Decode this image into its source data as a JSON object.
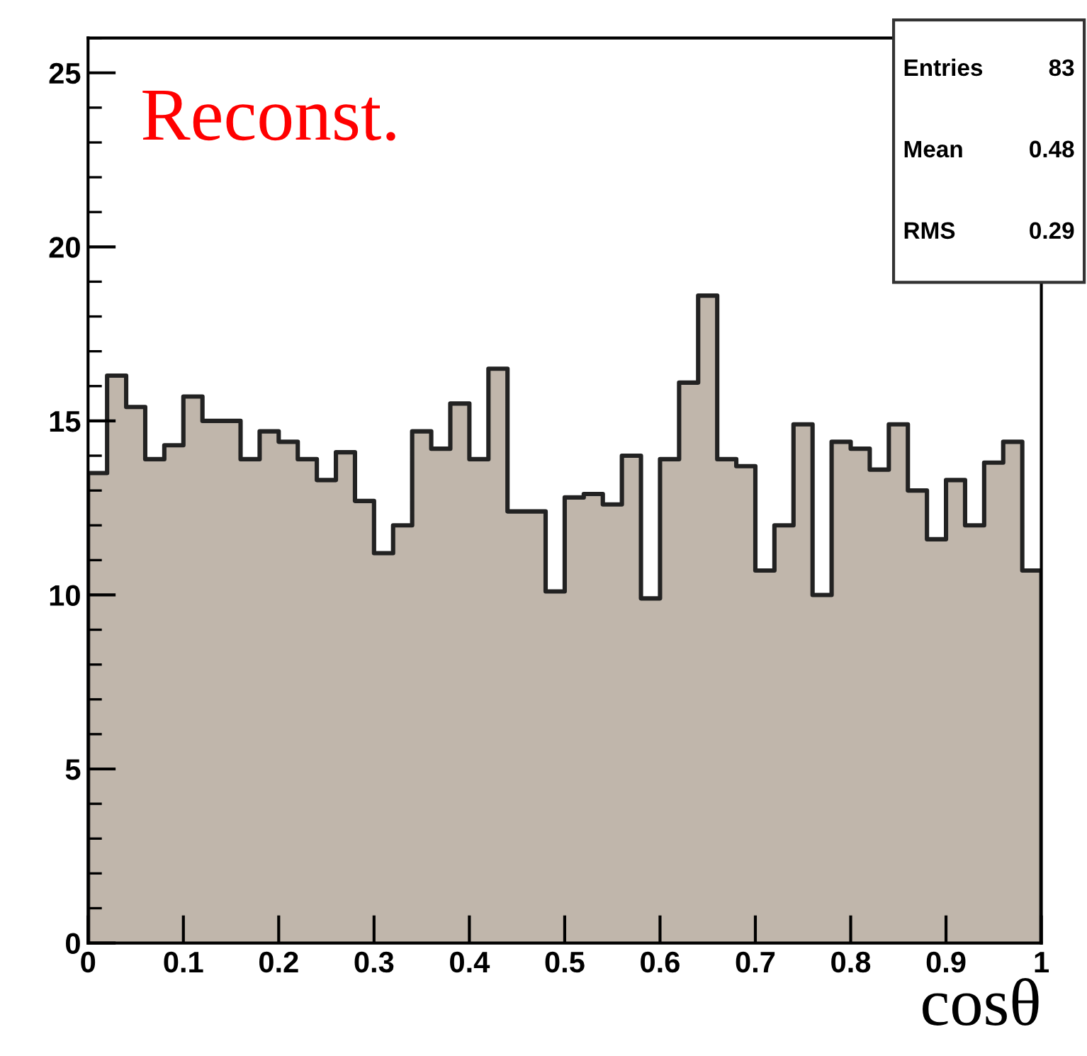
{
  "chart_data": {
    "type": "histogram",
    "xlabel": "cosθ",
    "annotations": [
      "Reconst.",
      "Entries",
      "83",
      "Mean",
      "0.48",
      "RMS",
      "0.29"
    ],
    "bins": [
      0,
      0.02,
      0.04,
      0.06,
      0.08,
      0.1,
      0.12,
      0.14,
      0.16,
      0.18,
      0.2,
      0.22,
      0.24,
      0.26,
      0.28,
      0.3,
      0.32,
      0.34,
      0.36,
      0.38,
      0.4,
      0.42,
      0.44,
      0.46,
      0.48,
      0.5,
      0.52,
      0.54,
      0.56,
      0.58,
      0.6,
      0.62,
      0.64,
      0.66,
      0.68,
      0.7,
      0.72,
      0.74,
      0.76,
      0.78,
      0.8,
      0.82,
      0.84,
      0.86,
      0.88,
      0.9,
      0.92,
      0.94,
      0.96,
      0.98,
      1
    ],
    "values": [
      13.5,
      16.3,
      15.4,
      13.9,
      14.3,
      15.7,
      15.0,
      15.0,
      13.9,
      14.7,
      14.4,
      13.9,
      13.3,
      14.1,
      12.7,
      11.2,
      12.0,
      14.7,
      14.2,
      15.5,
      13.9,
      16.5,
      12.4,
      12.4,
      10.1,
      12.8,
      12.9,
      12.6,
      14.0,
      9.9,
      13.9,
      16.1,
      18.6,
      13.9,
      13.7,
      10.7,
      12.0,
      14.9,
      10.0,
      14.4,
      14.2,
      13.6,
      14.9,
      13.0,
      11.6,
      13.3,
      12.0,
      13.8,
      14.4,
      10.7
    ],
    "color": "#c0b6ab",
    "xlim": [
      0,
      1
    ],
    "ylim": [
      0,
      26
    ],
    "xticks": [
      0,
      0.1,
      0.2,
      0.3,
      0.4,
      0.5,
      0.6,
      0.7,
      0.8,
      0.9,
      1
    ],
    "yticks": [
      0,
      5,
      10,
      15,
      20,
      25
    ],
    "grid": false
  }
}
